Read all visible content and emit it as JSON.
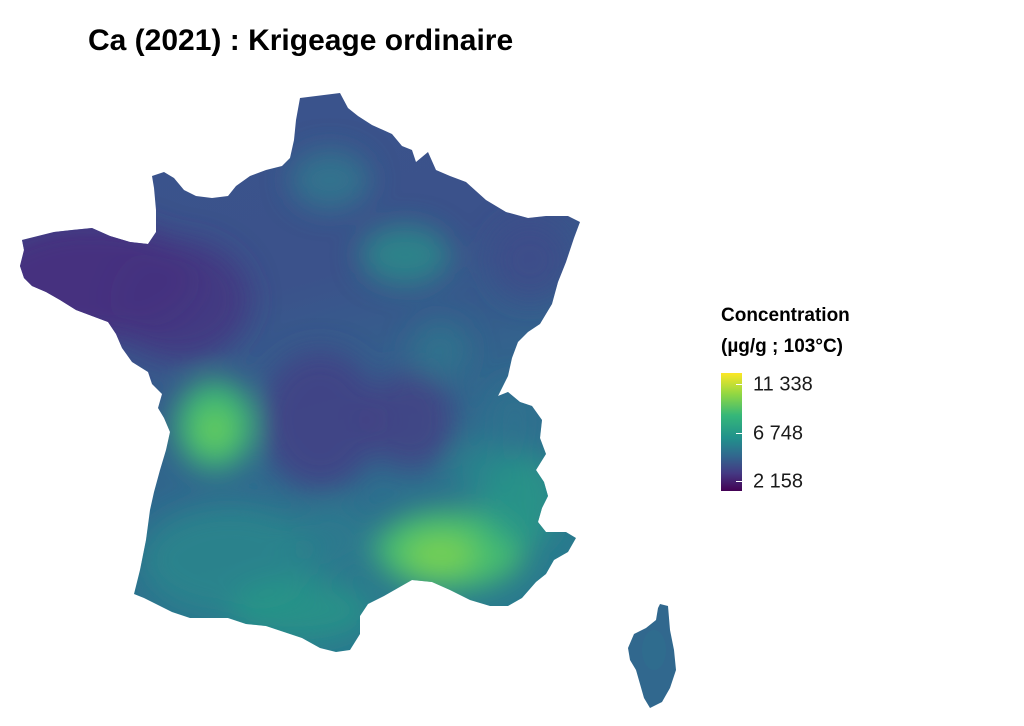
{
  "title": "Ca (2021) : Krigeage ordinaire",
  "legend": {
    "title_line1": "Concentration",
    "title_line2": "(µg/g ; 103°C)",
    "ticks": [
      "11 338",
      "6 748",
      "2 158"
    ],
    "tick_values": [
      11338,
      6748,
      2158
    ],
    "min": 2158,
    "max": 11338,
    "palette": [
      "#440154",
      "#443983",
      "#31688e",
      "#21918c",
      "#35b779",
      "#90d743",
      "#fde725"
    ]
  },
  "map": {
    "region": "France",
    "colors": {
      "low": "#472f7d",
      "mid_low": "#3b528b",
      "mid": "#2c728e",
      "mid_high": "#28ae80",
      "high": "#7ad151"
    }
  }
}
